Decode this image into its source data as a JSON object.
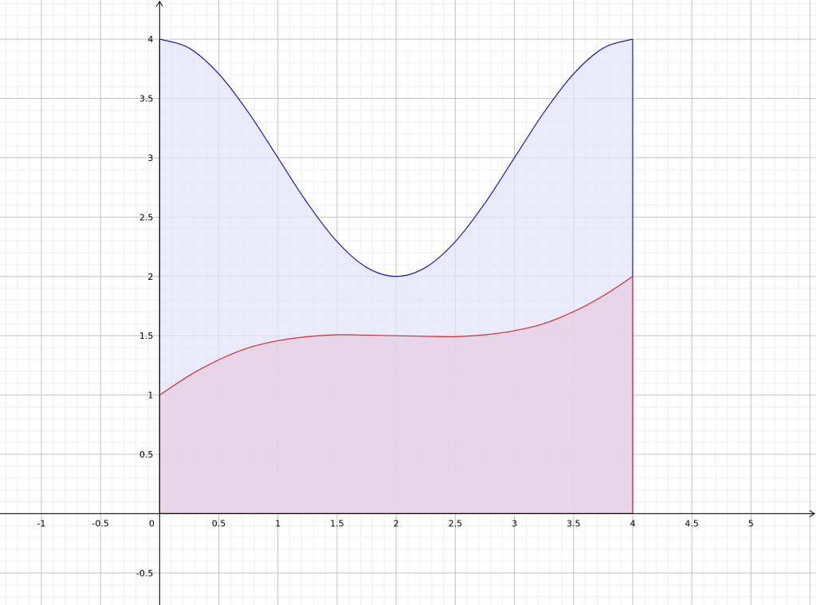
{
  "chart_data": {
    "type": "area",
    "title": "",
    "xlabel": "",
    "ylabel": "",
    "xlim": [
      -1.35,
      5.55
    ],
    "ylim": [
      -0.77,
      4.33
    ],
    "grid": true,
    "minor_grid": true,
    "x_ticks": [
      "-1",
      "-0.5",
      "0",
      "0.5",
      "1",
      "1.5",
      "2",
      "2.5",
      "3",
      "3.5",
      "4",
      "4.5",
      "5"
    ],
    "y_ticks": [
      "-0.5",
      "0.5",
      "1",
      "1.5",
      "2",
      "2.5",
      "3",
      "3.5",
      "4"
    ],
    "series": [
      {
        "color": "#1a1aa6",
        "fill": "#e4e4fb",
        "fill_to": 0,
        "x": [
          0,
          0.25,
          0.5,
          0.75,
          1,
          1.25,
          1.5,
          1.75,
          2,
          2.25,
          2.5,
          2.75,
          3,
          3.25,
          3.5,
          3.75,
          4
        ],
        "y": [
          4,
          3.924,
          3.707,
          3.383,
          3.0,
          2.617,
          2.293,
          2.076,
          2.0,
          2.076,
          2.293,
          2.617,
          3.0,
          3.383,
          3.707,
          3.924,
          4
        ]
      },
      {
        "color": "#d22e2e",
        "fill": "#e8cde3",
        "fill_to": 0,
        "x": [
          0,
          0.25,
          0.5,
          0.75,
          1,
          1.25,
          1.5,
          1.75,
          2,
          2.25,
          2.5,
          2.75,
          3,
          3.25,
          3.5,
          3.75,
          4
        ],
        "y": [
          1.0,
          1.164,
          1.297,
          1.398,
          1.458,
          1.492,
          1.508,
          1.505,
          1.5,
          1.495,
          1.492,
          1.508,
          1.542,
          1.602,
          1.703,
          1.836,
          2.0
        ]
      }
    ]
  }
}
